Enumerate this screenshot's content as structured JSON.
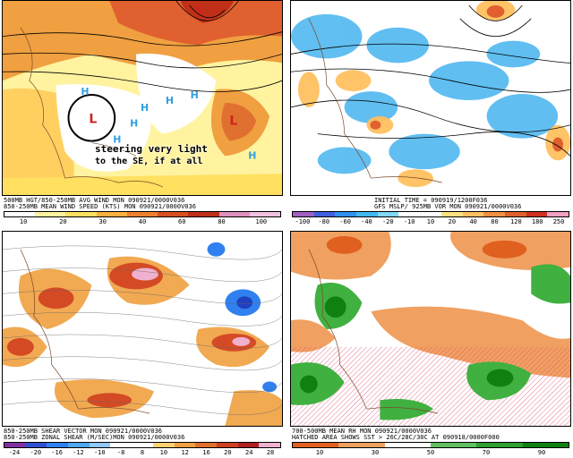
{
  "panels": [
    {
      "caption1": "500MB HGT/850-250MB AVG WIND MON 090921/0000V036",
      "caption2": "850-250MB MEAN WIND SPEED (KTS) MON 090921/0000V036",
      "ticks": [
        "10",
        "20",
        "30",
        "40",
        "60",
        "80",
        "100"
      ],
      "annotation_line1": "steering very light",
      "annotation_line2": "to the SE, if at all",
      "colors": [
        "#ffffff",
        "#fff3a0",
        "#ffe060",
        "#ffb040",
        "#f08030",
        "#d85020",
        "#c03018",
        "#e090c0",
        "#f0c0e0"
      ]
    },
    {
      "caption1": "INITIAL TIME = 090919/1200F036",
      "caption2": "GFS MSLP/ 925MB VOR MON 090921/0000V036",
      "ticks": [
        "-100",
        "-80",
        "-60",
        "-40",
        "-20",
        "-10",
        "10",
        "20",
        "40",
        "80",
        "120",
        "180",
        "250"
      ],
      "colors": [
        "#a060c0",
        "#4060e0",
        "#3090f0",
        "#40b8f0",
        "#80d8f8",
        "#ffffff",
        "#ffffff",
        "#ffe080",
        "#ffc060",
        "#f09040",
        "#e06030",
        "#d03020",
        "#f0a0c0"
      ]
    },
    {
      "caption1": "850-250MB SHEAR VECTOR MON 090921/0000V036",
      "caption2": "850-250MB ZONAL SHEAR (M/SEC)MON 090921/0000V036",
      "ticks": [
        "-24",
        "-20",
        "-16",
        "-12",
        "-10",
        "-8",
        "8",
        "10",
        "12",
        "16",
        "20",
        "24",
        "28"
      ],
      "colors": [
        "#8030a0",
        "#3050d0",
        "#3080f0",
        "#50a8f0",
        "#90c8f8",
        "#ffffff",
        "#ffffff",
        "#ffd070",
        "#f0a040",
        "#e07030",
        "#d04020",
        "#b02020",
        "#f0b0d0"
      ]
    },
    {
      "caption1": "700-500MB MEAN RH MON 090921/0000V036",
      "caption2": "HATCHED AREA SHOWS SST > 26C/28C/30C AT 090918/0000F000",
      "ticks": [
        "10",
        "30",
        "50",
        "70",
        "90"
      ],
      "colors": [
        "#e06020",
        "#f0a060",
        "#ffffff",
        "#60c060",
        "#30a030",
        "#108010"
      ]
    }
  ]
}
